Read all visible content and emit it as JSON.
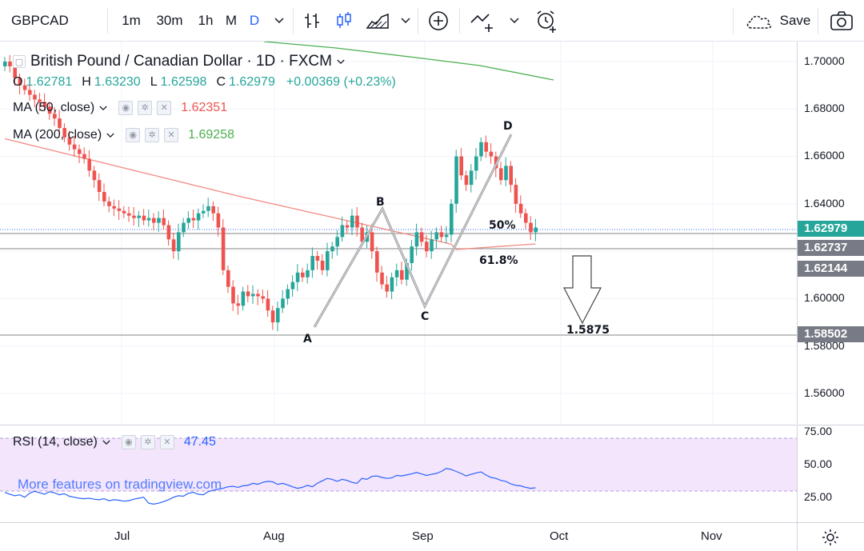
{
  "toolbar": {
    "symbol": "GBPCAD",
    "intervals": [
      "1m",
      "30m",
      "1h",
      "M",
      "D"
    ],
    "active_interval": "D",
    "save_label": "Save",
    "icons": [
      "chevron-down-icon",
      "bar-style-icon",
      "candles-icon",
      "area-icon",
      "add-indicator-icon",
      "compare-icon",
      "alert-icon",
      "cloud-icon",
      "camera-icon"
    ]
  },
  "legend": {
    "title": "British Pound / Canadian Dollar · 1D · FXCM",
    "open_label": "O",
    "open": "1.62781",
    "high_label": "H",
    "high": "1.63230",
    "low_label": "L",
    "low": "1.62598",
    "close_label": "C",
    "close": "1.62979",
    "change": "+0.00369 (+0.23%)",
    "ma50_label": "MA (50, close)",
    "ma50_value": "1.62351",
    "ma200_label": "MA (200, close)",
    "ma200_value": "1.69258",
    "rsi_label": "RSI (14, close)",
    "rsi_value": "47.45"
  },
  "watermark": "More features on tradingview.com",
  "price_scale": {
    "ticks": [
      "1.70000",
      "1.68000",
      "1.66000",
      "1.64000",
      "1.60000",
      "1.58000",
      "1.56000"
    ],
    "badges": [
      {
        "label": "1.62979",
        "color": "#26a69a"
      },
      {
        "label": "1.62737",
        "color": "#787b86"
      },
      {
        "label": "1.62144",
        "color": "#787b86"
      },
      {
        "label": "1.58502",
        "color": "#787b86"
      }
    ]
  },
  "rsi_scale": {
    "ticks": [
      "75.00",
      "50.00",
      "25.00"
    ]
  },
  "time_axis": {
    "labels": [
      "Jul",
      "Aug",
      "Sep",
      "Oct",
      "Nov"
    ]
  },
  "annotations": {
    "points": [
      "A",
      "B",
      "C",
      "D"
    ],
    "fib_50": "50%",
    "fib_618": "61.8%",
    "target": "1.5875"
  },
  "colors": {
    "up": "#26a69a",
    "down": "#ef5350",
    "ma50": "#f28b82",
    "ma200": "#4caf50",
    "rsi_line": "#2962ff",
    "rsi_band": "#f3e5fc",
    "accent": "#2962ff"
  }
}
